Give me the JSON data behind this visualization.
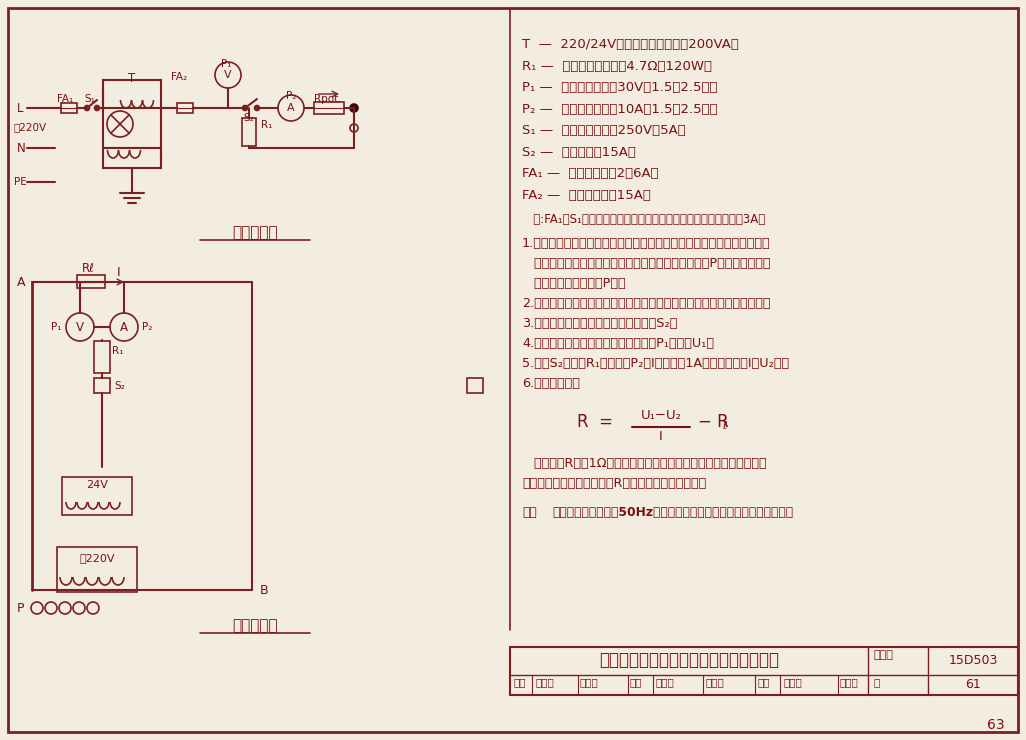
{
  "bg_color": "#f2ede0",
  "border_color": "#7a2020",
  "text_color": "#7a1010",
  "dark_color": "#3a0a0a",
  "line_color": "#7a2020",
  "title": "对已建成建筑物测量其钢筋体电阻的方法",
  "page_num": "63",
  "drawing_num": "15D503",
  "subtitle1": "测量电路图",
  "subtitle2": "测量接线图",
  "atlas_label": "图集号",
  "page_label": "页",
  "page_val": "61",
  "right_lines": [
    [
      "T  —  220/24V短路安全型变压器，200VA；",
      0
    ],
    [
      "R",
      1
    ],
    [
      "P",
      1
    ],
    [
      "P",
      1
    ],
    [
      "S",
      1
    ],
    [
      "S",
      1
    ],
    [
      "FA",
      1
    ],
    [
      "FA",
      1
    ]
  ],
  "T_line": "T  —  220/24V短路安全型变压器，200VA；",
  "R1_line": "R₁ —  可变线绕电阻器，4.7Ω，120W；",
  "P1_line": "P₁ —  电磁式电压表，30V，1.5或2.5级；",
  "P2_line": "P₂ —  电磁式电流表，10A，1.5或2.5级；",
  "S1_line": "S₁ —  两板转换开关，250V，5A；",
  "S2_line": "S₂ —  按钮开关，15A；",
  "FA1_line": "FA₁ —  熔断器，熔片2～6A；",
  "FA2_line": "FA₂ —  熔断器，熔片15A。",
  "note1": "   注:FA₁和S₁可合用一台两极小型电磁式断路器，脱扣器额定电流3A。",
  "step1": "1.在建筑物的底部（无地下室时为一层，有地下室时为地下室或一层），",
  "step1a": "   将测量导线连接到钢筋上的预埋件；当等电位连接带P与建筑物钢筋有",
  "step1b": "   连接时，也可连接到P上。",
  "step2": "2.在建筑物的最上部，将测量导线连接到钢筋上的预埋件或引出导体上。",
  "step3": "3.将串入的线绕电阻调至最大值，断开S₂。",
  "step4": "4.合上变压器一次侧电源后，从电压表P₁上读取U₁。",
  "step5": "5.合上S₂，调节R₁使电流表P₂，I的读数为1A左右，并读取I和U₂值。",
  "step6": "6.当按计算式：",
  "post1": "   计算出的R值为1Ω左右时，则满足要求，这时，可利用已建成的建",
  "post2": "筑物钢筋体作为防雷装置（R为测量连接线的电阻）。",
  "note2a": "注：",
  "note2b": "测量电路也可用于对50Hz人身安全等电位连接是否满足要求的测量。",
  "bottom_row2": "审核  胡刻辉    江文峰    校对  黄友根    童立孔    设计  林维勇    林维勇",
  "L_label": "L",
  "N_label": "N",
  "PE_label": "PE",
  "tilde220": "～220V",
  "A_label": "A",
  "B_label": "B",
  "P_label": "P",
  "T_label": "T",
  "Rpot_label": "Rpot.",
  "24V_label": "24V",
  "220V_label": "～220V"
}
